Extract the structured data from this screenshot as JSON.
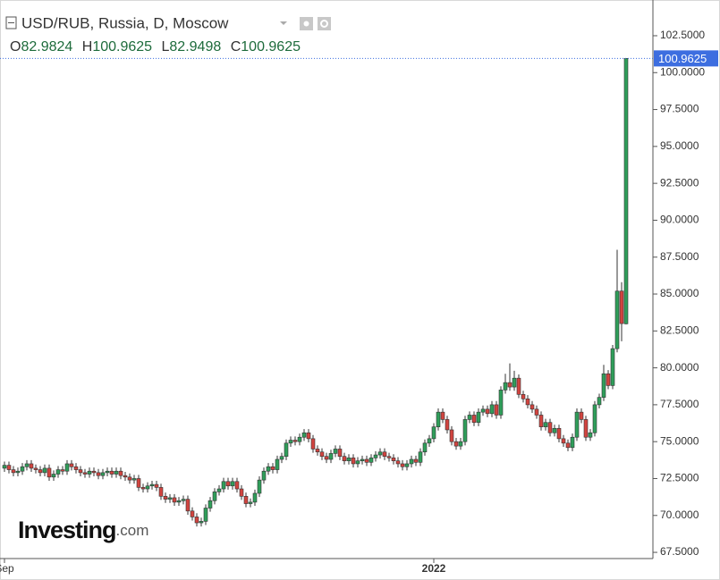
{
  "chart_data": {
    "type": "candlestick",
    "title": "USD/RUB, Russia, D, Moscow",
    "ohlc_labels": [
      "O",
      "H",
      "L",
      "C"
    ],
    "watermark": "Investing",
    "watermark_suffix": ".com",
    "up_color": "#2f9e5a",
    "down_color": "#d2443f",
    "price_line_color": "#3d6ee0",
    "xlim": [
      -1,
      145
    ],
    "xticks": [
      {
        "value": 0,
        "label": "Sep"
      },
      {
        "value": 96,
        "label": "2022"
      }
    ],
    "ylim": [
      67.08,
      104.92
    ],
    "yticks": [
      {
        "value": 67.5,
        "label": "67.5000"
      },
      {
        "value": 70,
        "label": "70.0000"
      },
      {
        "value": 72.5,
        "label": "72.5000"
      },
      {
        "value": 75,
        "label": "75.0000"
      },
      {
        "value": 77.5,
        "label": "77.5000"
      },
      {
        "value": 80,
        "label": "80.0000"
      },
      {
        "value": 82.5,
        "label": "82.5000"
      },
      {
        "value": 85,
        "label": "85.0000"
      },
      {
        "value": 87.5,
        "label": "87.5000"
      },
      {
        "value": 90,
        "label": "90.0000"
      },
      {
        "value": 92.5,
        "label": "92.5000"
      },
      {
        "value": 95,
        "label": "95.0000"
      },
      {
        "value": 97.5,
        "label": "97.5000"
      },
      {
        "value": 100,
        "label": "100.0000"
      },
      {
        "value": 102.5,
        "label": "102.5000"
      }
    ],
    "open": [
      73.2,
      73.4,
      73.1,
      72.9,
      73.0,
      73.3,
      73.5,
      73.2,
      73.1,
      72.9,
      73.2,
      72.6,
      72.8,
      73.1,
      73.0,
      73.5,
      73.3,
      73.1,
      72.9,
      72.8,
      73.0,
      72.9,
      72.7,
      72.9,
      73.0,
      72.8,
      73.0,
      72.7,
      72.6,
      72.4,
      72.5,
      71.9,
      71.8,
      72.0,
      72.1,
      71.9,
      71.3,
      71.1,
      71.2,
      70.9,
      71.0,
      71.1,
      70.3,
      69.9,
      69.5,
      69.6,
      70.5,
      71.0,
      71.6,
      71.8,
      72.3,
      72.0,
      72.3,
      71.8,
      71.3,
      70.8,
      70.9,
      71.5,
      72.4,
      73.0,
      73.3,
      73.1,
      73.8,
      74.0,
      74.9,
      75.1,
      75.0,
      75.3,
      75.6,
      75.2,
      74.5,
      74.3,
      74.0,
      73.8,
      74.2,
      74.5,
      74.0,
      73.7,
      73.9,
      73.5,
      73.7,
      73.8,
      73.6,
      73.9,
      74.1,
      74.3,
      74.0,
      73.9,
      73.7,
      73.5,
      73.3,
      73.5,
      73.8,
      73.6,
      74.3,
      74.9,
      75.2,
      76.0,
      77.0,
      76.5,
      75.8,
      75.0,
      74.7,
      75.0,
      76.5,
      76.8,
      76.3,
      77.0,
      77.2,
      76.9,
      77.5,
      76.8,
      78.5,
      79.0,
      78.7,
      79.3,
      78.2,
      77.9,
      77.5,
      77.2,
      76.8,
      76.0,
      76.3,
      75.6,
      75.9,
      75.2,
      74.9,
      74.6,
      75.3,
      77.0,
      76.5,
      75.3,
      75.6,
      77.5,
      78.0,
      79.6,
      78.8,
      81.3,
      85.2,
      82.9824
    ],
    "high": [
      73.65,
      73.65,
      73.35,
      73.25,
      73.55,
      73.75,
      73.75,
      73.45,
      73.35,
      73.45,
      73.45,
      73.05,
      73.35,
      73.35,
      73.75,
      73.75,
      73.55,
      73.35,
      73.15,
      73.25,
      73.25,
      73.15,
      73.15,
      73.25,
      73.25,
      73.25,
      73.25,
      72.95,
      72.85,
      72.75,
      72.75,
      72.15,
      72.25,
      72.35,
      72.35,
      72.15,
      71.55,
      71.45,
      71.45,
      71.25,
      71.35,
      71.35,
      70.55,
      70.15,
      69.85,
      70.75,
      71.25,
      71.85,
      72.05,
      72.55,
      72.55,
      72.55,
      72.55,
      72.05,
      71.55,
      71.15,
      71.75,
      72.65,
      73.25,
      73.55,
      73.55,
      74.05,
      74.25,
      75.15,
      75.35,
      75.35,
      75.55,
      75.85,
      75.85,
      75.45,
      74.75,
      74.55,
      74.25,
      74.45,
      74.75,
      74.75,
      74.25,
      74.15,
      74.15,
      73.95,
      74.05,
      74.05,
      74.15,
      74.35,
      74.55,
      74.55,
      74.25,
      74.15,
      73.95,
      73.75,
      73.75,
      74.05,
      74.05,
      74.55,
      75.15,
      75.45,
      76.25,
      77.25,
      77.25,
      76.75,
      76.05,
      75.25,
      75.25,
      76.75,
      77.05,
      77.05,
      77.25,
      77.45,
      77.45,
      77.75,
      77.75,
      78.75,
      79.6,
      80.3,
      79.8,
      79.55,
      78.45,
      78.15,
      77.75,
      77.45,
      77.05,
      76.55,
      76.55,
      76.15,
      76.15,
      75.45,
      75.15,
      75.55,
      77.25,
      77.25,
      76.75,
      75.85,
      77.75,
      78.25,
      80.2,
      79.85,
      81.55,
      88.0,
      85.8,
      100.9625
    ],
    "low": [
      72.95,
      72.85,
      72.65,
      72.65,
      72.75,
      73.05,
      72.95,
      72.85,
      72.65,
      72.65,
      72.35,
      72.35,
      72.55,
      72.75,
      72.75,
      73.05,
      72.85,
      72.65,
      72.55,
      72.55,
      72.65,
      72.45,
      72.45,
      72.65,
      72.55,
      72.55,
      72.45,
      72.35,
      72.15,
      72.15,
      71.65,
      71.55,
      71.55,
      71.75,
      71.65,
      71.05,
      70.85,
      70.85,
      70.65,
      70.65,
      70.75,
      70.05,
      69.65,
      69.25,
      69.25,
      69.35,
      70.25,
      70.75,
      71.35,
      71.55,
      71.75,
      71.75,
      71.55,
      71.05,
      70.55,
      70.55,
      70.65,
      71.25,
      72.15,
      72.75,
      72.85,
      72.85,
      73.55,
      73.75,
      74.65,
      74.75,
      74.75,
      75.05,
      74.95,
      74.25,
      74.05,
      73.75,
      73.55,
      73.55,
      73.95,
      73.75,
      73.45,
      73.45,
      73.25,
      73.25,
      73.45,
      73.35,
      73.35,
      73.65,
      73.85,
      73.75,
      73.65,
      73.45,
      73.25,
      73.05,
      73.05,
      73.25,
      73.35,
      73.35,
      74.05,
      74.65,
      74.95,
      75.75,
      76.25,
      75.55,
      74.75,
      74.45,
      74.45,
      74.75,
      76.25,
      76.05,
      76.05,
      76.75,
      76.65,
      76.65,
      76.55,
      76.55,
      78.25,
      78.45,
      78.45,
      77.95,
      77.65,
      77.25,
      76.95,
      76.55,
      75.75,
      75.75,
      75.35,
      75.35,
      74.95,
      74.65,
      74.35,
      74.35,
      75.05,
      76.25,
      75.05,
      75.05,
      75.35,
      77.25,
      77.75,
      78.55,
      78.55,
      81.05,
      81.8,
      82.9498
    ],
    "close": [
      73.4,
      73.1,
      72.9,
      73.0,
      73.3,
      73.5,
      73.2,
      73.1,
      72.9,
      73.2,
      72.6,
      72.8,
      73.1,
      73.0,
      73.5,
      73.3,
      73.1,
      72.9,
      72.8,
      73.0,
      72.9,
      72.7,
      72.9,
      73.0,
      72.8,
      73.0,
      72.7,
      72.6,
      72.4,
      72.5,
      71.9,
      71.8,
      72.0,
      72.1,
      71.9,
      71.3,
      71.1,
      71.2,
      70.9,
      71.0,
      71.1,
      70.3,
      69.9,
      69.5,
      69.6,
      70.5,
      71.0,
      71.6,
      71.8,
      72.3,
      72.0,
      72.3,
      71.8,
      71.3,
      70.8,
      70.9,
      71.5,
      72.4,
      73.0,
      73.3,
      73.1,
      73.8,
      74.0,
      74.9,
      75.1,
      75.0,
      75.3,
      75.6,
      75.2,
      74.5,
      74.3,
      74.0,
      73.8,
      74.2,
      74.5,
      74.0,
      73.7,
      73.9,
      73.5,
      73.7,
      73.8,
      73.6,
      73.9,
      74.1,
      74.3,
      74.0,
      73.9,
      73.7,
      73.5,
      73.3,
      73.5,
      73.8,
      73.6,
      74.3,
      74.9,
      75.2,
      76.0,
      77.0,
      76.5,
      75.8,
      75.0,
      74.7,
      75.0,
      76.5,
      76.8,
      76.3,
      77.0,
      77.2,
      76.9,
      77.5,
      76.8,
      78.5,
      79.0,
      78.7,
      79.3,
      78.2,
      77.9,
      77.5,
      77.2,
      76.8,
      76.0,
      76.3,
      75.6,
      75.9,
      75.2,
      74.9,
      74.6,
      75.3,
      77.0,
      76.5,
      75.3,
      75.6,
      77.5,
      78.0,
      79.6,
      78.8,
      81.3,
      85.2,
      83.0,
      100.9625
    ]
  }
}
